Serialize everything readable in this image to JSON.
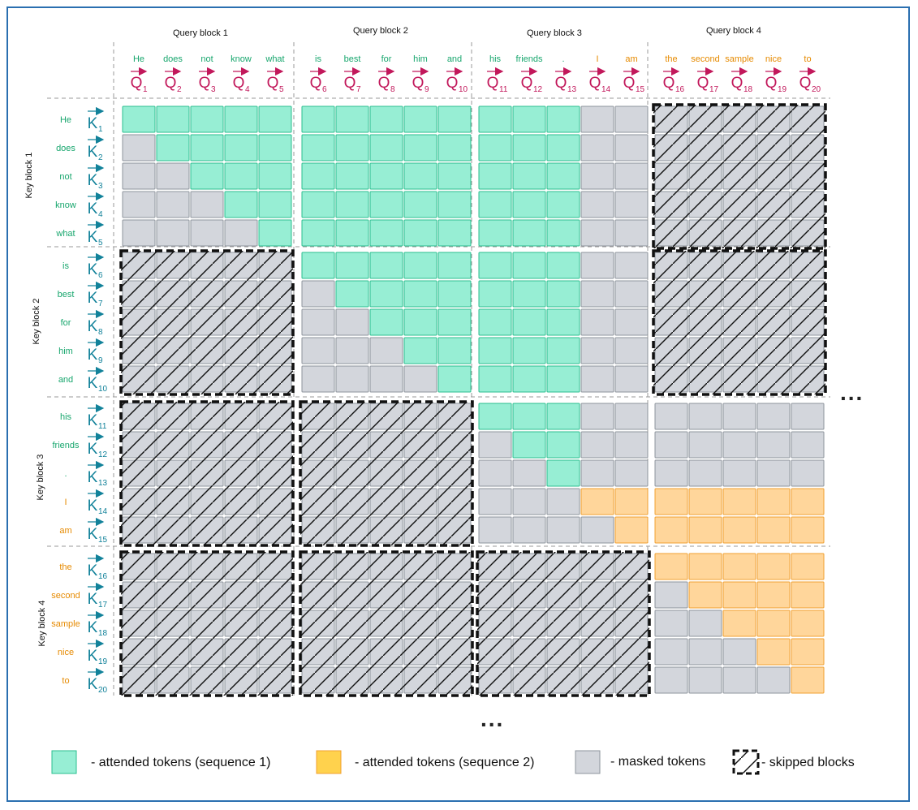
{
  "query_blocks": [
    "Query block 1",
    "Query block 2",
    "Query block 3",
    "Query block 4"
  ],
  "key_blocks": [
    "Key block 1",
    "Key block 2",
    "Key block 3",
    "Key block 4"
  ],
  "tokens": [
    "He",
    "does",
    "not",
    "know",
    "what",
    "is",
    "best",
    "for",
    "him",
    "and",
    "his",
    "friends",
    ".",
    "I",
    "am",
    "the",
    "second",
    "sample",
    "nice",
    "to"
  ],
  "token_sequence": [
    1,
    1,
    1,
    1,
    1,
    1,
    1,
    1,
    1,
    1,
    1,
    1,
    1,
    2,
    2,
    2,
    2,
    2,
    2,
    2
  ],
  "query_symbol": "Q",
  "key_symbol": "K",
  "skipped_blocks": [
    [
      0,
      3
    ],
    [
      1,
      0
    ],
    [
      1,
      3
    ],
    [
      2,
      0
    ],
    [
      2,
      1
    ],
    [
      3,
      0
    ],
    [
      3,
      1
    ],
    [
      3,
      2
    ]
  ],
  "ellipsis": "...",
  "legend": {
    "seq1": "- attended tokens (sequence 1)",
    "seq2": "- attended tokens (sequence 2)",
    "masked": "- masked tokens",
    "skipped": "- skipped blocks"
  },
  "colors": {
    "seq1_fill": "#97eed4",
    "seq1_stroke": "#2bbf8f",
    "seq2_fill": "#ffd69b",
    "seq2_stroke": "#f0a030",
    "masked_fill": "#d3d6dc",
    "masked_stroke": "#8e949c",
    "legend_seq2_fill": "#ffd24d",
    "seq1_text": "#17a66d",
    "seq2_text": "#e68a00",
    "query_vec": "#c2185b",
    "key_vec": "#12829a",
    "frame": "#2a6fb0"
  }
}
